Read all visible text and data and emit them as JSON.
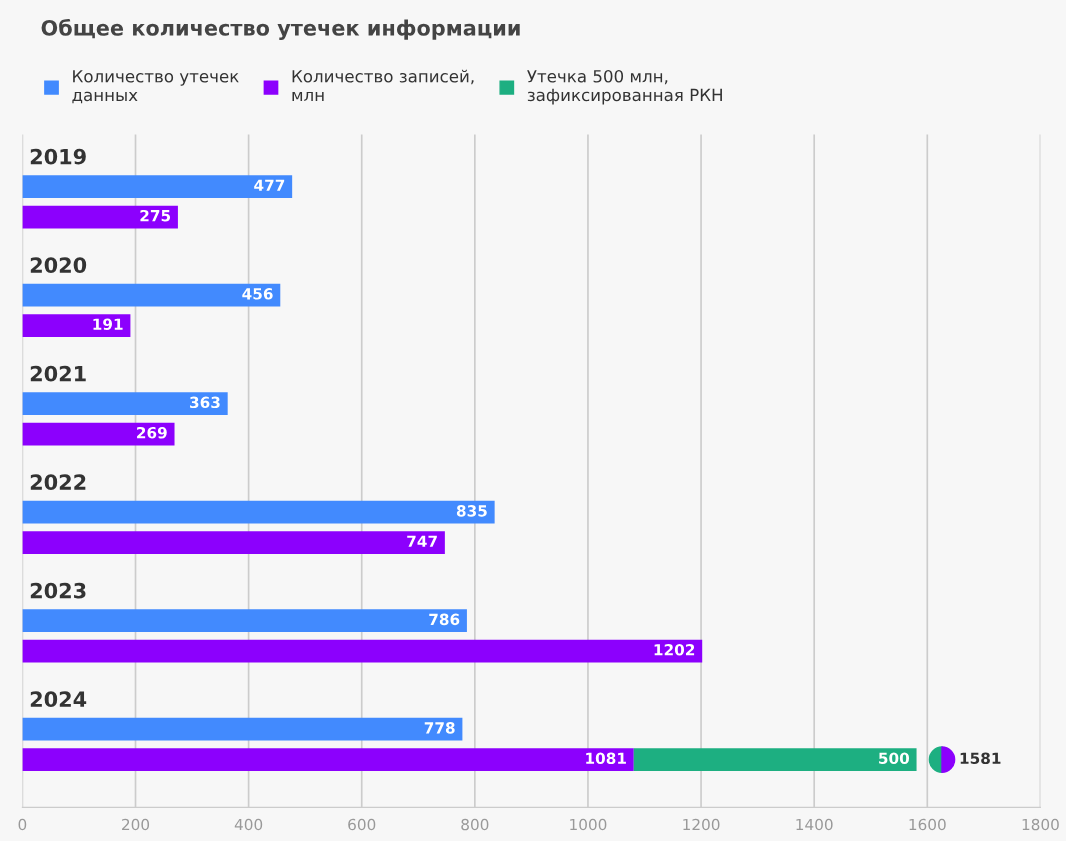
{
  "chart_data": {
    "type": "bar",
    "orientation": "horizontal",
    "title": "Общее количество утечек информации",
    "categories": [
      "2019",
      "2020",
      "2021",
      "2022",
      "2023",
      "2024"
    ],
    "series": [
      {
        "name": "Количество утечек\nданных",
        "color": "#428afe",
        "values": [
          477,
          456,
          363,
          835,
          786,
          778
        ]
      },
      {
        "name": "Количество записей,\nмлн",
        "color": "#8c00fd",
        "values": [
          275,
          191,
          269,
          747,
          1202,
          1081
        ]
      },
      {
        "name": "Утечка 500 млн,\nзафиксированная РКН",
        "color": "#1daf81",
        "values": [
          null,
          null,
          null,
          null,
          null,
          500
        ],
        "base": [
          null,
          null,
          null,
          null,
          null,
          1081
        ]
      }
    ],
    "annotations": [
      {
        "text": "1581",
        "x": 1581,
        "y": "2024"
      }
    ],
    "xlim": [
      0,
      1800
    ],
    "xticks": [
      0,
      200,
      400,
      600,
      800,
      1000,
      1200,
      1400,
      1600,
      1800
    ],
    "grid": "x",
    "legend": "top left",
    "data_labels": true
  }
}
